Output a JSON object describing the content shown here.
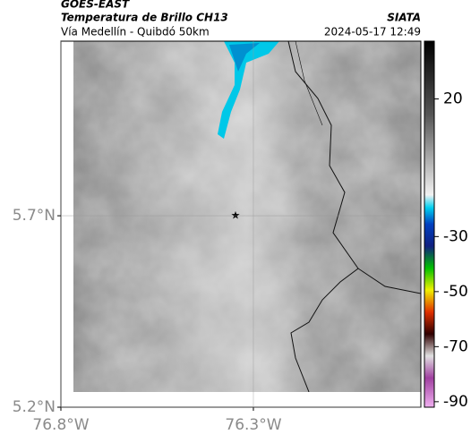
{
  "header": {
    "title": "GOES-EAST",
    "subtitle": "Temperatura de Brillo CH13",
    "region": "Vía Medellín - Quibdó 50km",
    "source": "SIATA",
    "timestamp": "2024-05-17 12:49"
  },
  "map": {
    "xlim": [
      -76.8,
      -75.865
    ],
    "ylim": [
      5.2,
      6.156
    ],
    "xticks": [
      {
        "value": -76.8,
        "label": "76.8°W"
      },
      {
        "value": -76.3,
        "label": "76.3°W"
      }
    ],
    "yticks": [
      {
        "value": 5.7,
        "label": "5.7°N"
      },
      {
        "value": 5.2,
        "label": "5.2°N"
      }
    ]
  },
  "colorbar": {
    "lim": [
      -92,
      41
    ],
    "ticks": [
      20,
      -30,
      -50,
      -70,
      -90
    ]
  }
}
